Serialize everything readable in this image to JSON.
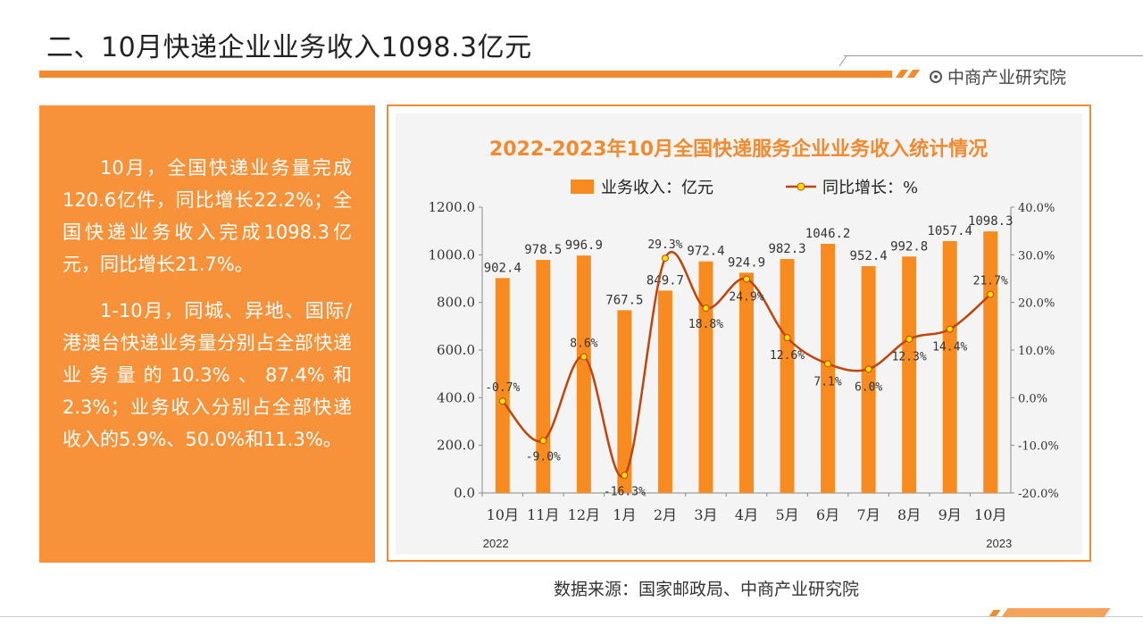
{
  "slide_title": "二、10月快递企业业务收入1098.3亿元",
  "brand": "中商产业研究院",
  "text_paragraphs": [
    "10月，全国快递业务量完成120.6亿件，同比增长22.2%；全国快递业务收入完成1098.3亿元，同比增长21.7%。",
    "1-10月，同城、异地、国际/港澳台快递业务量分别占全部快递业务量的10.3%、87.4%和2.3%；业务收入分别占全部快递收入的5.9%、50.0%和11.3%。"
  ],
  "source": "数据来源：国家邮政局、中商产业研究院",
  "colors": {
    "accent": "#f28a30",
    "bar": "#f78b1f",
    "line": "#c0440b",
    "marker": "#ffe100"
  },
  "chart_data": {
    "type": "bar",
    "title": "2022-2023年10月全国快递服务企业业务收入统计情况",
    "categories": [
      "10月",
      "11月",
      "12月",
      "1月",
      "2月",
      "3月",
      "4月",
      "5月",
      "6月",
      "7月",
      "8月",
      "9月",
      "10月"
    ],
    "year_labels": {
      "start": "2022",
      "end": "2023"
    },
    "series": [
      {
        "name": "业务收入：亿元",
        "type": "bar",
        "axis": "left",
        "values": [
          902.4,
          978.5,
          996.9,
          767.5,
          849.7,
          972.4,
          924.9,
          982.3,
          1046.2,
          952.4,
          992.8,
          1057.4,
          1098.3
        ],
        "labels": [
          "902.4",
          "978.5",
          "996.9",
          "767.5",
          "849.7",
          "972.4",
          "924.9",
          "982.3",
          "1046.2",
          "952.4",
          "992.8",
          "1057.4",
          "1098.3"
        ]
      },
      {
        "name": "同比增长：%",
        "type": "line",
        "axis": "right",
        "values": [
          -0.7,
          -9.0,
          8.6,
          -16.3,
          29.3,
          18.8,
          24.9,
          12.6,
          7.1,
          6.0,
          12.3,
          14.4,
          21.7
        ],
        "labels": [
          "-0.7%",
          "-9.0%",
          "8.6%",
          "-16.3%",
          "29.3%",
          "18.8%",
          "24.9%",
          "12.6%",
          "7.1%",
          "6.0%",
          "12.3%",
          "14.4%",
          "21.7%"
        ]
      }
    ],
    "left_axis": {
      "ylim": [
        0,
        1200
      ],
      "ticks": [
        "0.0",
        "200.0",
        "400.0",
        "600.0",
        "800.0",
        "1000.0",
        "1200.0"
      ]
    },
    "right_axis": {
      "ylim": [
        -20,
        40
      ],
      "ticks": [
        "-20.0%",
        "-10.0%",
        "0.0%",
        "10.0%",
        "20.0%",
        "30.0%",
        "40.0%"
      ]
    },
    "legend_position": "top-center",
    "grid": false
  }
}
